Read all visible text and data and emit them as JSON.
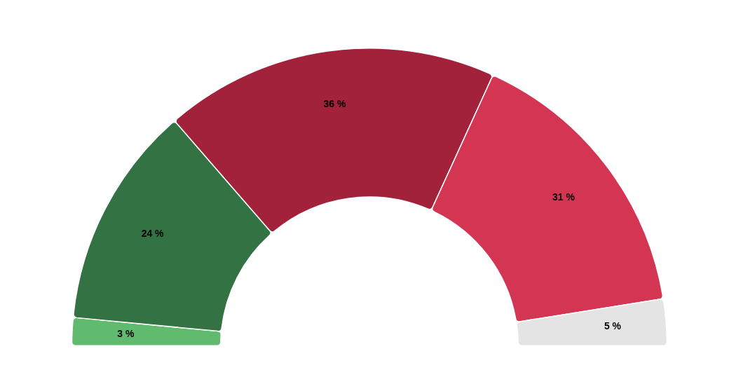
{
  "chart_data": {
    "type": "donut",
    "categories": [
      null,
      null,
      null,
      null,
      null
    ],
    "values": [
      3,
      24,
      36,
      31,
      5
    ],
    "colors": [
      "#61bb6e",
      "#327243",
      "#a3223b",
      "#d43553",
      "#e4e4e4"
    ],
    "value_labels": [
      "3 %",
      "24 %",
      "36 %",
      "31 %",
      "5 %"
    ]
  }
}
